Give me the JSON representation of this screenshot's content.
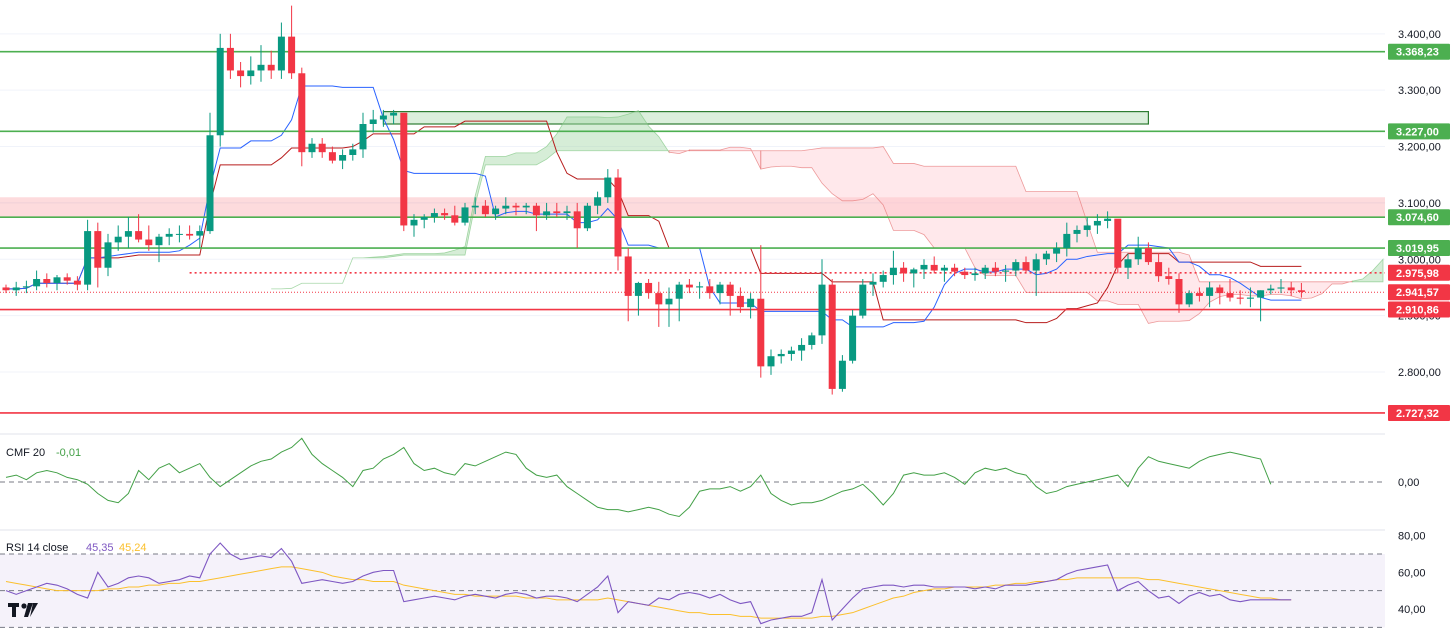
{
  "chart_data": [
    {
      "type": "candlestick",
      "panel": "price",
      "y_ticks": [
        "3.400,00",
        "3.300,00",
        "3.200,00",
        "3.100,00",
        "3.000,00",
        "2.900,00",
        "2.800,00"
      ],
      "y_tick_values": [
        3400,
        3300,
        3200,
        3100,
        3000,
        2900,
        2800
      ],
      "ylim": [
        2690,
        3460
      ],
      "bull_color": "#089981",
      "bear_color": "#f23645",
      "candles": [
        [
          2950,
          2955,
          2940,
          2945
        ],
        [
          2945,
          2960,
          2935,
          2950
        ],
        [
          2950,
          2962,
          2940,
          2952
        ],
        [
          2952,
          2980,
          2945,
          2965
        ],
        [
          2965,
          2975,
          2950,
          2958
        ],
        [
          2958,
          2972,
          2945,
          2968
        ],
        [
          2968,
          2975,
          2955,
          2962
        ],
        [
          2962,
          2970,
          2945,
          2955
        ],
        [
          2955,
          3070,
          2945,
          3050
        ],
        [
          3050,
          3065,
          2950,
          2985
        ],
        [
          2985,
          3045,
          2970,
          3030
        ],
        [
          3030,
          3060,
          3015,
          3040
        ],
        [
          3040,
          3075,
          3020,
          3050
        ],
        [
          3050,
          3080,
          3030,
          3035
        ],
        [
          3035,
          3060,
          3015,
          3025
        ],
        [
          3025,
          3045,
          2995,
          3040
        ],
        [
          3040,
          3055,
          3025,
          3045
        ],
        [
          3045,
          3060,
          3030,
          3045
        ],
        [
          3045,
          3060,
          3035,
          3042
        ],
        [
          3042,
          3060,
          3020,
          3050
        ],
        [
          3050,
          3260,
          3045,
          3220
        ],
        [
          3220,
          3400,
          3200,
          3375
        ],
        [
          3375,
          3400,
          3320,
          3335
        ],
        [
          3335,
          3350,
          3305,
          3325
        ],
        [
          3325,
          3360,
          3310,
          3335
        ],
        [
          3335,
          3380,
          3315,
          3345
        ],
        [
          3345,
          3370,
          3320,
          3335
        ],
        [
          3335,
          3420,
          3320,
          3395
        ],
        [
          3395,
          3450,
          3320,
          3330
        ],
        [
          3330,
          3340,
          3165,
          3190
        ],
        [
          3190,
          3215,
          3180,
          3205
        ],
        [
          3205,
          3215,
          3180,
          3190
        ],
        [
          3190,
          3200,
          3170,
          3175
        ],
        [
          3175,
          3195,
          3160,
          3185
        ],
        [
          3185,
          3205,
          3175,
          3195
        ],
        [
          3195,
          3260,
          3180,
          3240
        ],
        [
          3240,
          3265,
          3225,
          3248
        ],
        [
          3248,
          3265,
          3235,
          3255
        ],
        [
          3255,
          3265,
          3240,
          3260
        ],
        [
          3260,
          3255,
          3050,
          3060
        ],
        [
          3060,
          3080,
          3040,
          3070
        ],
        [
          3070,
          3080,
          3055,
          3075
        ],
        [
          3075,
          3090,
          3065,
          3082
        ],
        [
          3082,
          3090,
          3070,
          3078
        ],
        [
          3078,
          3095,
          3060,
          3065
        ],
        [
          3065,
          3100,
          3060,
          3092
        ],
        [
          3092,
          3110,
          3080,
          3095
        ],
        [
          3095,
          3105,
          3075,
          3080
        ],
        [
          3080,
          3095,
          3070,
          3090
        ],
        [
          3090,
          3110,
          3080,
          3095
        ],
        [
          3095,
          3100,
          3078,
          3092
        ],
        [
          3092,
          3100,
          3080,
          3095
        ],
        [
          3095,
          3100,
          3050,
          3078
        ],
        [
          3078,
          3100,
          3070,
          3085
        ],
        [
          3085,
          3100,
          3075,
          3082
        ],
        [
          3082,
          3095,
          3070,
          3085
        ],
        [
          3085,
          3100,
          3020,
          3055
        ],
        [
          3055,
          3100,
          3050,
          3095
        ],
        [
          3095,
          3120,
          3080,
          3110
        ],
        [
          3110,
          3160,
          3100,
          3145
        ],
        [
          3145,
          3160,
          2980,
          3005
        ],
        [
          3005,
          3020,
          2890,
          2935
        ],
        [
          2935,
          2960,
          2900,
          2958
        ],
        [
          2958,
          2965,
          2930,
          2940
        ],
        [
          2940,
          2960,
          2880,
          2920
        ],
        [
          2920,
          2950,
          2880,
          2930
        ],
        [
          2930,
          2960,
          2890,
          2955
        ],
        [
          2955,
          2965,
          2940,
          2950
        ],
        [
          2950,
          2960,
          2930,
          2952
        ],
        [
          2952,
          2965,
          2930,
          2940
        ],
        [
          2940,
          2960,
          2920,
          2955
        ],
        [
          2955,
          2960,
          2900,
          2935
        ],
        [
          2935,
          2950,
          2905,
          2915
        ],
        [
          2915,
          2940,
          2895,
          2930
        ],
        [
          2930,
          3025,
          2790,
          2810
        ],
        [
          2810,
          2840,
          2795,
          2828
        ],
        [
          2828,
          2840,
          2815,
          2832
        ],
        [
          2832,
          2845,
          2820,
          2838
        ],
        [
          2838,
          2860,
          2820,
          2848
        ],
        [
          2848,
          2870,
          2840,
          2865
        ],
        [
          2865,
          3000,
          2850,
          2955
        ],
        [
          2955,
          2965,
          2760,
          2770
        ],
        [
          2770,
          2830,
          2765,
          2820
        ],
        [
          2820,
          2910,
          2815,
          2900
        ],
        [
          2900,
          2965,
          2895,
          2955
        ],
        [
          2955,
          2975,
          2935,
          2960
        ],
        [
          2960,
          2980,
          2950,
          2972
        ],
        [
          2972,
          3015,
          2955,
          2985
        ],
        [
          2985,
          2995,
          2960,
          2975
        ],
        [
          2975,
          2985,
          2950,
          2982
        ],
        [
          2982,
          3000,
          2965,
          2990
        ],
        [
          2990,
          3005,
          2975,
          2980
        ],
        [
          2980,
          2990,
          2960,
          2985
        ],
        [
          2985,
          2992,
          2970,
          2978
        ],
        [
          2978,
          2985,
          2965,
          2972
        ],
        [
          2972,
          2985,
          2962,
          2975
        ],
        [
          2975,
          2990,
          2965,
          2985
        ],
        [
          2985,
          2995,
          2970,
          2978
        ],
        [
          2978,
          2990,
          2960,
          2980
        ],
        [
          2980,
          3000,
          2970,
          2995
        ],
        [
          2995,
          3005,
          2975,
          2980
        ],
        [
          2980,
          3010,
          2935,
          3000
        ],
        [
          3000,
          3015,
          2990,
          3010
        ],
        [
          3010,
          3030,
          2995,
          3020
        ],
        [
          3020,
          3065,
          3005,
          3045
        ],
        [
          3045,
          3060,
          3030,
          3052
        ],
        [
          3052,
          3075,
          3040,
          3060
        ],
        [
          3060,
          3080,
          3045,
          3068
        ],
        [
          3068,
          3085,
          3055,
          3072
        ],
        [
          3072,
          3070,
          2975,
          2985
        ],
        [
          2985,
          3010,
          2965,
          3000
        ],
        [
          3000,
          3040,
          2990,
          3020
        ],
        [
          3020,
          3030,
          2990,
          2995
        ],
        [
          2995,
          3010,
          2960,
          2970
        ],
        [
          2970,
          2985,
          2955,
          2965
        ],
        [
          2965,
          2975,
          2905,
          2920
        ],
        [
          2920,
          2945,
          2915,
          2940
        ],
        [
          2940,
          2950,
          2925,
          2935
        ],
        [
          2935,
          2960,
          2915,
          2950
        ],
        [
          2950,
          2955,
          2920,
          2940
        ],
        [
          2940,
          2965,
          2925,
          2932
        ],
        [
          2932,
          2945,
          2920,
          2930
        ],
        [
          2930,
          2950,
          2915,
          2932
        ],
        [
          2932,
          2945,
          2890,
          2945
        ],
        [
          2945,
          2955,
          2938,
          2948
        ],
        [
          2948,
          2965,
          2940,
          2950
        ],
        [
          2950,
          2960,
          2935,
          2945
        ],
        [
          2945,
          2958,
          2932,
          2942
        ]
      ],
      "levels": [
        {
          "value": 3368.23,
          "label": "3.368,23",
          "color": "#4caf50"
        },
        {
          "value": 3227.0,
          "label": "3.227,00",
          "color": "#4caf50"
        },
        {
          "value": 3074.6,
          "label": "3.074,60",
          "color": "#4caf50"
        },
        {
          "value": 3019.95,
          "label": "3.019,95",
          "color": "#4caf50"
        },
        {
          "value": 2975.98,
          "label": "2.975,98",
          "color": "#f23645",
          "style": "dotted"
        },
        {
          "value": 2941.57,
          "label": "2.941,57",
          "color": "#f23645",
          "style": "current"
        },
        {
          "value": 2910.86,
          "label": "2.910,86",
          "color": "#f23645"
        },
        {
          "value": 2727.32,
          "label": "2.727,32",
          "color": "#f23645"
        }
      ],
      "zones": [
        {
          "from": 3074.6,
          "to": 3110,
          "color": "#f23645",
          "kind": "resistance-band"
        },
        {
          "from": 3240,
          "to": 3262,
          "color": "#4caf50",
          "kind": "supply-box"
        }
      ],
      "colors": {
        "tenkan": "#2962ff",
        "kijun": "#b71c1c",
        "cloud_bull": "#a5d6a7",
        "cloud_bear": "#ffcdd2"
      }
    },
    {
      "type": "line",
      "panel": "cmf",
      "title": "CMF 20",
      "value_label": "-0,01",
      "color": "#43a047",
      "y_ticks": [
        "0,00"
      ],
      "ylim": [
        -0.2,
        0.2
      ],
      "values": [
        0.02,
        0.03,
        0.01,
        0.04,
        0.05,
        0.04,
        0.02,
        0.01,
        -0.01,
        -0.05,
        -0.08,
        -0.09,
        -0.05,
        0.05,
        0.01,
        0.06,
        0.08,
        0.04,
        0.06,
        0.08,
        0.02,
        -0.02,
        0.01,
        0.04,
        0.07,
        0.09,
        0.1,
        0.13,
        0.15,
        0.19,
        0.12,
        0.08,
        0.05,
        0.02,
        -0.02,
        0.05,
        0.06,
        0.1,
        0.12,
        0.15,
        0.08,
        0.05,
        0.06,
        0.04,
        0.03,
        0.08,
        0.07,
        0.09,
        0.11,
        0.13,
        0.12,
        0.06,
        0.03,
        0.02,
        0.03,
        -0.02,
        -0.05,
        -0.08,
        -0.11,
        -0.12,
        -0.12,
        -0.13,
        -0.12,
        -0.11,
        -0.12,
        -0.14,
        -0.15,
        -0.11,
        -0.04,
        -0.03,
        -0.03,
        -0.02,
        -0.04,
        -0.02,
        0.03,
        -0.05,
        -0.08,
        -0.1,
        -0.09,
        -0.09,
        -0.08,
        -0.06,
        -0.04,
        -0.03,
        -0.01,
        -0.05,
        -0.1,
        -0.05,
        0.03,
        0.04,
        0.03,
        0.03,
        0.04,
        0.02,
        -0.01,
        0.04,
        0.06,
        0.05,
        0.06,
        0.04,
        0.03,
        -0.02,
        -0.05,
        -0.04,
        -0.02,
        -0.01,
        0.0,
        0.01,
        0.02,
        0.03,
        -0.02,
        0.06,
        0.11,
        0.09,
        0.08,
        0.07,
        0.06,
        0.09,
        0.11,
        0.12,
        0.13,
        0.12,
        0.11,
        0.1,
        -0.01
      ],
      "baseline": 0
    },
    {
      "type": "line",
      "panel": "rsi",
      "title": "RSI 14 close",
      "value_label": "45,35",
      "ma_label": "45,24",
      "series": [
        {
          "name": "RSI",
          "color": "#7e57c2"
        },
        {
          "name": "RSI-based MA",
          "color": "#fbc02d"
        }
      ],
      "y_ticks": [
        "80,00",
        "60,00",
        "40,00"
      ],
      "bands": [
        70,
        50,
        30
      ],
      "ylim": [
        28,
        82
      ],
      "rsi": [
        50,
        48,
        50,
        52,
        54,
        53,
        51,
        48,
        46,
        60,
        52,
        54,
        57,
        58,
        57,
        54,
        55,
        56,
        58,
        57,
        70,
        76,
        70,
        67,
        68,
        69,
        68,
        73,
        66,
        54,
        55,
        56,
        55,
        54,
        55,
        58,
        60,
        61,
        61,
        44,
        45,
        46,
        47,
        46,
        45,
        47,
        48,
        47,
        46,
        48,
        49,
        48,
        46,
        47,
        47,
        46,
        44,
        48,
        52,
        58,
        38,
        44,
        43,
        42,
        46,
        45,
        48,
        49,
        48,
        46,
        48,
        45,
        43,
        44,
        32,
        34,
        35,
        36,
        36,
        38,
        56,
        34,
        40,
        46,
        51,
        52,
        53,
        53,
        52,
        53,
        53,
        52,
        52,
        52,
        52,
        51,
        52,
        51,
        53,
        53,
        53,
        54,
        55,
        56,
        59,
        61,
        62,
        63,
        64,
        50,
        53,
        55,
        50,
        46,
        47,
        43,
        47,
        49,
        47,
        48,
        45,
        44,
        45,
        45,
        45,
        45,
        45
      ],
      "ma": [
        55,
        54,
        53,
        52,
        51,
        50,
        50,
        50,
        50,
        50,
        51,
        51,
        52,
        52,
        53,
        53,
        54,
        54,
        55,
        55,
        56,
        57,
        58,
        59,
        60,
        61,
        62,
        63,
        63,
        62,
        61,
        60,
        58,
        57,
        56,
        56,
        55,
        55,
        55,
        53,
        52,
        51,
        50,
        49,
        48,
        48,
        47,
        47,
        47,
        47,
        47,
        46,
        46,
        46,
        45,
        45,
        45,
        45,
        45,
        46,
        45,
        44,
        43,
        42,
        41,
        40,
        39,
        38,
        38,
        37,
        37,
        37,
        36,
        36,
        35,
        35,
        35,
        35,
        35,
        35,
        36,
        36,
        37,
        38,
        40,
        42,
        44,
        46,
        47,
        49,
        50,
        51,
        51,
        52,
        52,
        52,
        52,
        53,
        53,
        54,
        54,
        55,
        55,
        56,
        56,
        57,
        57,
        57,
        57,
        57,
        57,
        57,
        56,
        56,
        55,
        54,
        53,
        52,
        51,
        50,
        49,
        48,
        47,
        46,
        46,
        45,
        45
      ]
    }
  ],
  "logo": {
    "text": "TV"
  }
}
